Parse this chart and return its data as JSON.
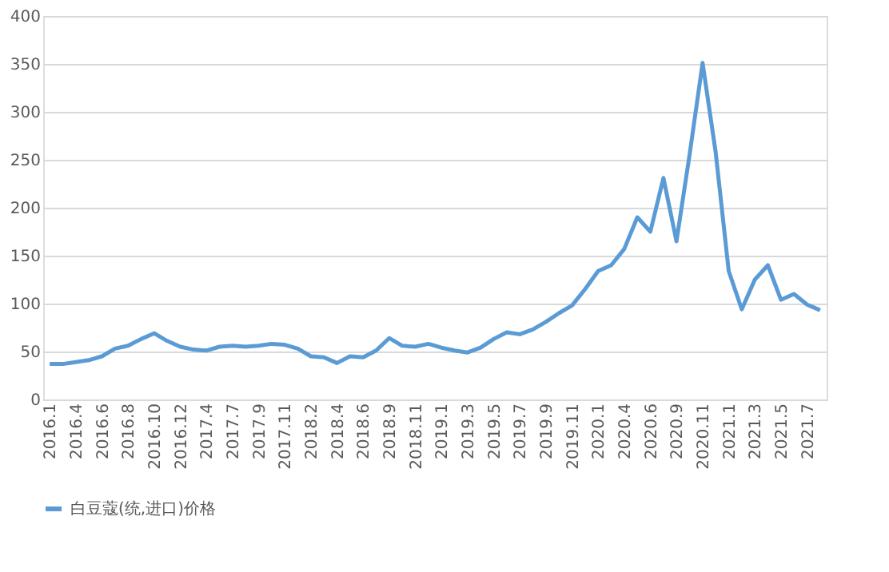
{
  "chart_data": {
    "type": "line",
    "categories": [
      "2016.1",
      null,
      "2016.4",
      null,
      "2016.6",
      null,
      "2016.8",
      null,
      "2016.10",
      null,
      "2016.12",
      null,
      "2017.4",
      null,
      "2017.7",
      null,
      "2017.9",
      null,
      "2017.11",
      null,
      "2018.2",
      null,
      "2018.4",
      null,
      "2018.6",
      null,
      "2018.9",
      null,
      "2018.11",
      null,
      "2019.1",
      null,
      "2019.3",
      null,
      "2019.5",
      null,
      "2019.7",
      null,
      "2019.9",
      null,
      "2019.11",
      null,
      "2020.1",
      null,
      "2020.4",
      null,
      "2020.6",
      null,
      "2020.9",
      null,
      "2020.11",
      null,
      "2021.1",
      null,
      "2021.3",
      null,
      "2021.5",
      null,
      "2021.7",
      null
    ],
    "series": [
      {
        "name": "白豆蔻(统,进口)价格",
        "color": "#5b9bd5",
        "values": [
          37,
          37,
          39,
          41,
          45,
          53,
          56,
          63,
          69,
          61,
          55,
          52,
          51,
          55,
          56,
          55,
          56,
          58,
          57,
          53,
          45,
          44,
          38,
          45,
          44,
          51,
          64,
          56,
          55,
          58,
          54,
          51,
          49,
          54,
          63,
          70,
          68,
          73,
          81,
          90,
          98,
          115,
          134,
          140,
          157,
          190,
          175,
          231,
          165,
          255,
          351,
          258,
          134,
          94,
          125,
          140,
          104,
          110,
          99,
          93
        ]
      }
    ],
    "ylim": [
      0,
      400
    ],
    "yticks": [
      0,
      50,
      100,
      150,
      200,
      250,
      300,
      350,
      400
    ],
    "grid": "y",
    "legend": "bottom",
    "marker": "none",
    "line_style": "solid"
  }
}
